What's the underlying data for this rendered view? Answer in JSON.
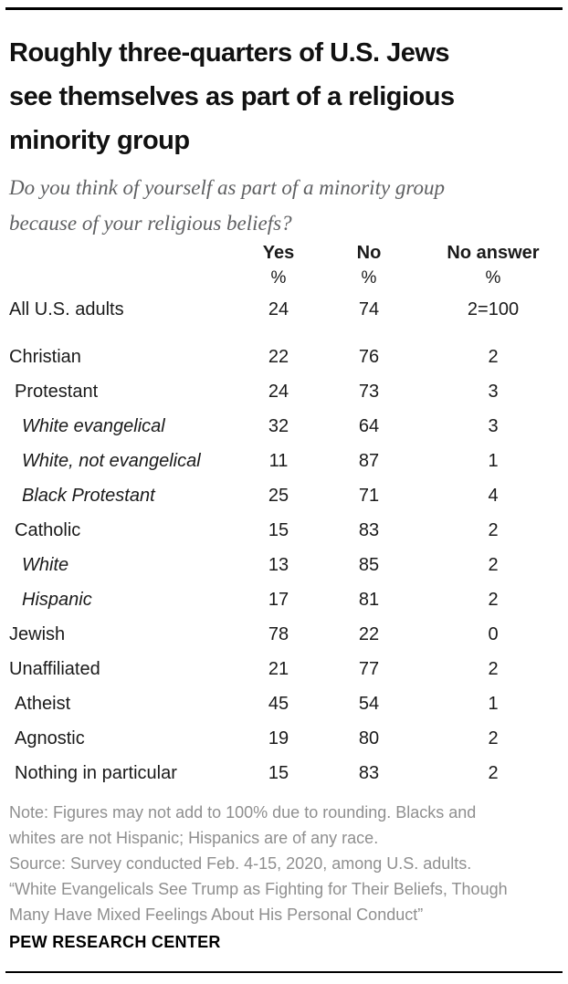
{
  "page": {
    "brand": "PEW RESEARCH CENTER"
  },
  "colors": {
    "rule_black": "#000000",
    "title_text": "#111111",
    "subtitle_gray": "#5f6062",
    "table_text": "#1a1a1a",
    "note_gray": "#8f8f8f",
    "background": "#ffffff"
  },
  "chart_data": {
    "type": "table",
    "title": "Roughly three-quarters of U.S. Jews see themselves as part of a religious minority group",
    "title_lines": [
      "Roughly three-quarters of U.S. Jews",
      "see themselves as part of a religious",
      "minority group"
    ],
    "subtitle": "Do you think of yourself as part of a minority group because of your religious beliefs?",
    "subtitle_lines": [
      "Do you think of yourself as part of a minority group",
      "because of your religious beliefs?"
    ],
    "columns": [
      "Yes",
      "No",
      "No answer"
    ],
    "unit_row": [
      "%",
      "%",
      "%"
    ],
    "rows": [
      {
        "label": "All U.S. adults",
        "indent": 0,
        "italic": false,
        "values": [
          "24",
          "74",
          "2=100"
        ]
      },
      {
        "label": "Christian",
        "indent": 0,
        "italic": false,
        "values": [
          "22",
          "76",
          "2"
        ]
      },
      {
        "label": "Protestant",
        "indent": 1,
        "italic": false,
        "values": [
          "24",
          "73",
          "3"
        ]
      },
      {
        "label": "White evangelical",
        "indent": 2,
        "italic": true,
        "values": [
          "32",
          "64",
          "3"
        ]
      },
      {
        "label": "White, not evangelical",
        "indent": 2,
        "italic": true,
        "values": [
          "11",
          "87",
          "1"
        ]
      },
      {
        "label": "Black Protestant",
        "indent": 2,
        "italic": true,
        "values": [
          "25",
          "71",
          "4"
        ]
      },
      {
        "label": "Catholic",
        "indent": 1,
        "italic": false,
        "values": [
          "15",
          "83",
          "2"
        ]
      },
      {
        "label": "White",
        "indent": 2,
        "italic": true,
        "values": [
          "13",
          "85",
          "2"
        ]
      },
      {
        "label": "Hispanic",
        "indent": 2,
        "italic": true,
        "values": [
          "17",
          "81",
          "2"
        ]
      },
      {
        "label": "Jewish",
        "indent": 0,
        "italic": false,
        "values": [
          "78",
          "22",
          "0"
        ]
      },
      {
        "label": "Unaffiliated",
        "indent": 0,
        "italic": false,
        "values": [
          "21",
          "77",
          "2"
        ]
      },
      {
        "label": "Atheist",
        "indent": 1,
        "italic": false,
        "values": [
          "45",
          "54",
          "1"
        ]
      },
      {
        "label": "Agnostic",
        "indent": 1,
        "italic": false,
        "values": [
          "19",
          "80",
          "2"
        ]
      },
      {
        "label": "Nothing in particular",
        "indent": 1,
        "italic": false,
        "values": [
          "15",
          "83",
          "2"
        ]
      }
    ],
    "note": "Note: Figures may not add to 100% due to rounding. Blacks and whites are not Hispanic; Hispanics are of any race.",
    "source": "Source: Survey conducted Feb. 4-15, 2020, among U.S. adults.",
    "report_title": "“White Evangelicals See Trump as Fighting for Their Beliefs, Though Many Have Mixed Feelings About His Personal Conduct”",
    "note_lines": [
      "Note: Figures may not add to 100% due to rounding. Blacks and",
      "whites are not Hispanic; Hispanics are of any race.",
      "Source: Survey conducted Feb. 4-15, 2020, among U.S. adults.",
      "“White Evangelicals See Trump as Fighting for Their Beliefs, Though",
      "Many Have Mixed Feelings About His Personal Conduct”"
    ]
  }
}
